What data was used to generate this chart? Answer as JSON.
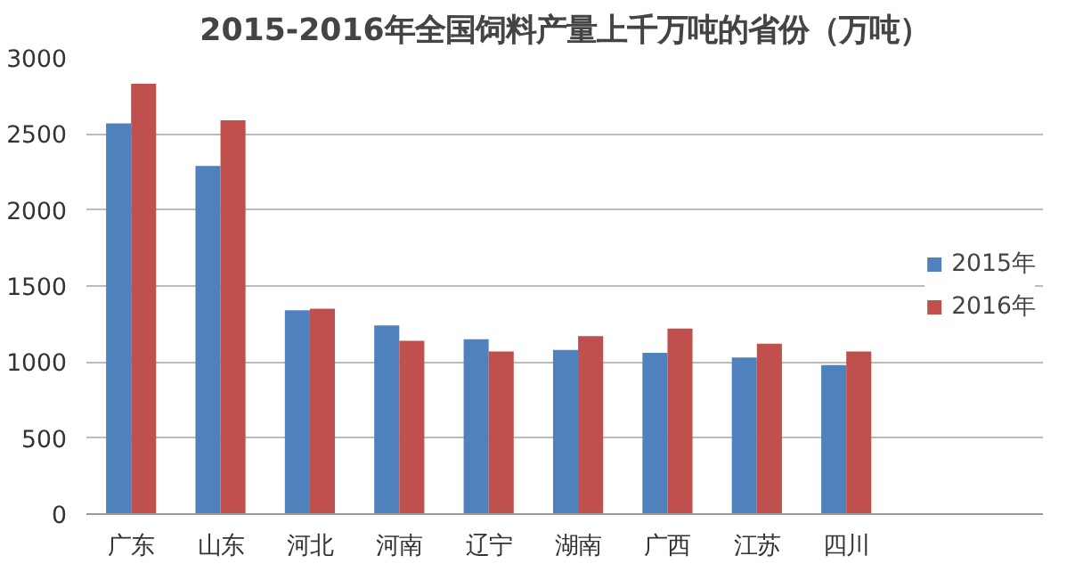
{
  "chart_data": {
    "type": "bar",
    "title": "2015-2016年全国饲料产量上千万吨的省份（万吨）",
    "categories": [
      "广东",
      "山东",
      "河北",
      "河南",
      "辽宁",
      "湖南",
      "广西",
      "江苏",
      "四川"
    ],
    "series": [
      {
        "name": "2015年",
        "color": "#4f81bd",
        "values": [
          2570,
          2290,
          1340,
          1240,
          1150,
          1080,
          1060,
          1030,
          980
        ]
      },
      {
        "name": "2016年",
        "color": "#c0504d",
        "values": [
          2830,
          2590,
          1350,
          1140,
          1070,
          1170,
          1220,
          1120,
          1070
        ]
      }
    ],
    "ylim": [
      0,
      3000
    ],
    "yticks": [
      0,
      500,
      1000,
      1500,
      2000,
      2500,
      3000
    ],
    "grid": "y",
    "legend": "right"
  }
}
